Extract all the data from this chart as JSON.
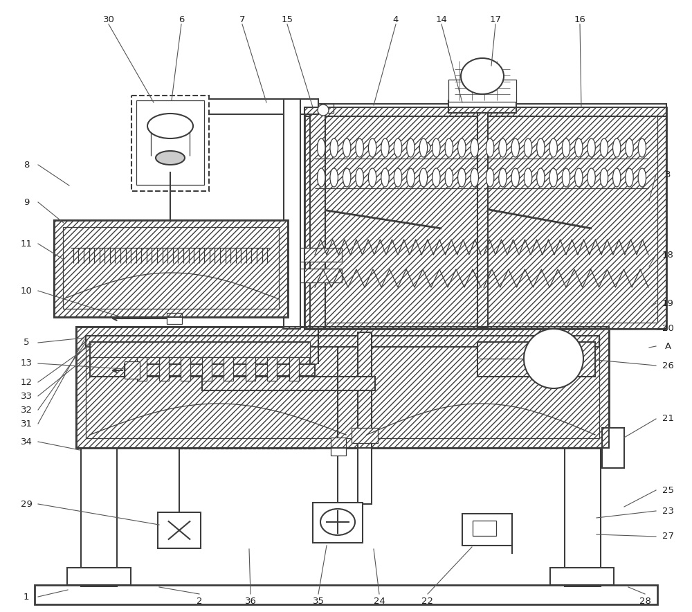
{
  "bg_color": "#ffffff",
  "line_color": "#3c3c3c",
  "fig_width": 10.0,
  "fig_height": 8.84,
  "dpi": 100,
  "label_fontsize": 9.5,
  "label_color": "#222222",
  "lw_main": 1.5,
  "lw_thin": 0.9,
  "lw_thick": 2.0
}
